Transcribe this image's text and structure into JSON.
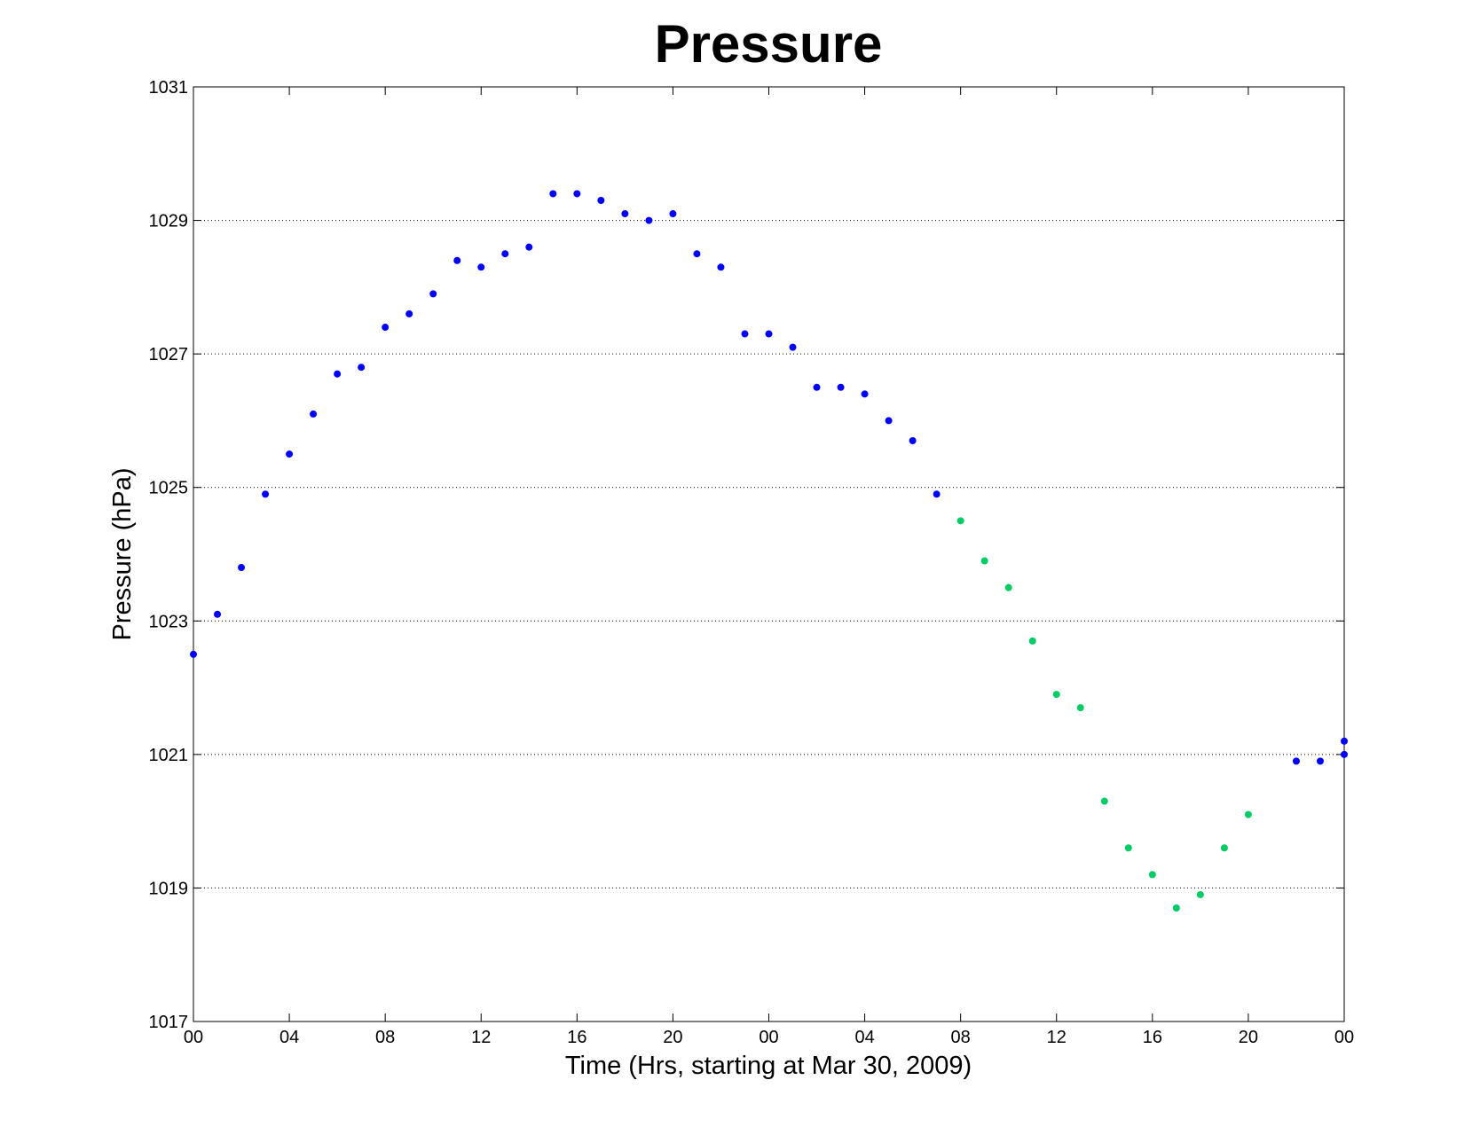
{
  "chart_data": {
    "type": "scatter",
    "title": "Pressure",
    "xlabel": "Time (Hrs, starting at Mar 30, 2009)",
    "ylabel": "Pressure (hPa)",
    "xlim": [
      0,
      48
    ],
    "ylim": [
      1017,
      1031
    ],
    "x_ticks": [
      0,
      4,
      8,
      12,
      16,
      20,
      24,
      28,
      32,
      36,
      40,
      44,
      48
    ],
    "x_tick_labels": [
      "00",
      "04",
      "08",
      "12",
      "16",
      "20",
      "00",
      "04",
      "08",
      "12",
      "16",
      "20",
      "00"
    ],
    "y_ticks": [
      1017,
      1019,
      1021,
      1023,
      1025,
      1027,
      1029,
      1031
    ],
    "y_tick_labels": [
      "1017",
      "1019",
      "1021",
      "1023",
      "1025",
      "1027",
      "1029",
      "1031"
    ],
    "grid": "horizontal-dotted",
    "series": [
      {
        "color": "#0000ff",
        "points": [
          [
            0,
            1022.5
          ],
          [
            1,
            1023.1
          ],
          [
            2,
            1023.8
          ],
          [
            3,
            1024.9
          ],
          [
            4,
            1025.5
          ],
          [
            5,
            1026.1
          ],
          [
            6,
            1026.7
          ],
          [
            7,
            1026.8
          ],
          [
            8,
            1027.4
          ],
          [
            9,
            1027.6
          ],
          [
            10,
            1027.9
          ],
          [
            11,
            1028.4
          ],
          [
            12,
            1028.3
          ],
          [
            13,
            1028.5
          ],
          [
            14,
            1028.6
          ],
          [
            15,
            1029.4
          ],
          [
            16,
            1029.4
          ],
          [
            17,
            1029.3
          ],
          [
            18,
            1029.1
          ],
          [
            19,
            1029.0
          ],
          [
            20,
            1029.1
          ],
          [
            21,
            1028.5
          ],
          [
            22,
            1028.3
          ],
          [
            23,
            1027.3
          ],
          [
            24,
            1027.3
          ],
          [
            25,
            1027.1
          ],
          [
            26,
            1026.5
          ],
          [
            27,
            1026.5
          ],
          [
            28,
            1026.4
          ],
          [
            29,
            1026.0
          ],
          [
            30,
            1025.7
          ],
          [
            31,
            1024.9
          ],
          [
            46,
            1020.9
          ],
          [
            47,
            1020.9
          ],
          [
            48,
            1021.0
          ],
          [
            48,
            1021.2
          ]
        ]
      },
      {
        "color": "#00cc66",
        "points": [
          [
            32,
            1024.5
          ],
          [
            33,
            1023.9
          ],
          [
            34,
            1023.5
          ],
          [
            35,
            1022.7
          ],
          [
            36,
            1021.9
          ],
          [
            37,
            1021.7
          ],
          [
            38,
            1020.3
          ],
          [
            39,
            1019.6
          ],
          [
            40,
            1019.2
          ],
          [
            41,
            1018.7
          ],
          [
            42,
            1018.9
          ],
          [
            43,
            1019.6
          ],
          [
            44,
            1020.1
          ]
        ]
      }
    ]
  }
}
